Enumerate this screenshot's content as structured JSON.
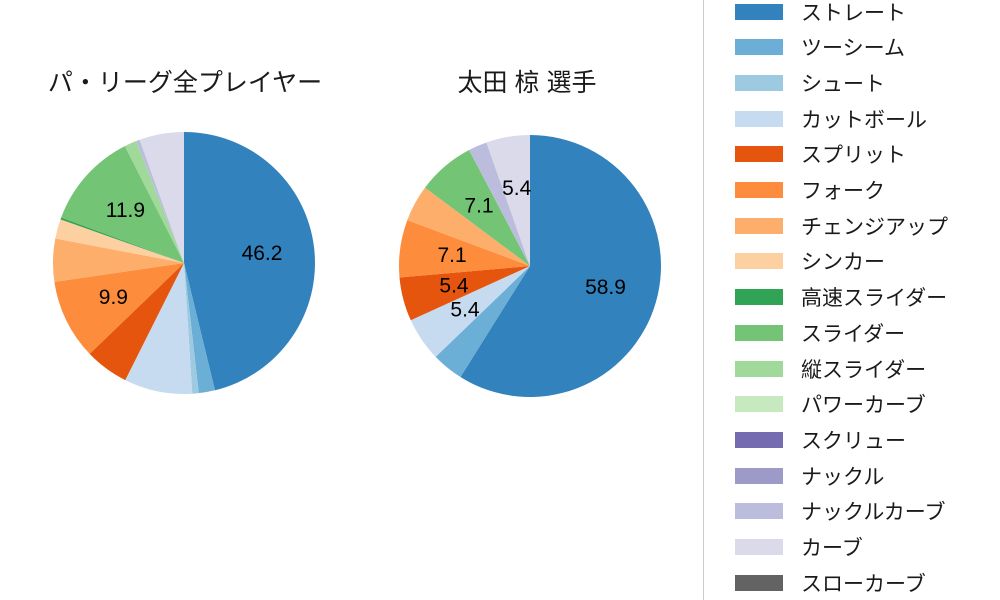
{
  "colors": {
    "background": "#ffffff",
    "text": "#1a1a1a",
    "label_text": "#000000",
    "legend_border": "#cccccc",
    "legend_background": "#ffffff"
  },
  "legend": {
    "items": [
      {
        "label": "ストレート",
        "color": "#3182bd"
      },
      {
        "label": "ツーシーム",
        "color": "#6baed6"
      },
      {
        "label": "シュート",
        "color": "#9ecae1"
      },
      {
        "label": "カットボール",
        "color": "#c6dbef"
      },
      {
        "label": "スプリット",
        "color": "#e6550d"
      },
      {
        "label": "フォーク",
        "color": "#fd8d3c"
      },
      {
        "label": "チェンジアップ",
        "color": "#fdae6b"
      },
      {
        "label": "シンカー",
        "color": "#fdd0a2"
      },
      {
        "label": "高速スライダー",
        "color": "#31a354"
      },
      {
        "label": "スライダー",
        "color": "#74c476"
      },
      {
        "label": "縦スライダー",
        "color": "#a1d99b"
      },
      {
        "label": "パワーカーブ",
        "color": "#c7e9c0"
      },
      {
        "label": "スクリュー",
        "color": "#756bb1"
      },
      {
        "label": "ナックル",
        "color": "#9e9ac8"
      },
      {
        "label": "ナックルカーブ",
        "color": "#bcbddc"
      },
      {
        "label": "カーブ",
        "color": "#dadaeb"
      },
      {
        "label": "スローカーブ",
        "color": "#636363"
      }
    ]
  },
  "chart_data": [
    {
      "type": "pie",
      "title": "パ・リーグ全プレイヤー",
      "start_angle_deg": 90,
      "direction": "clockwise",
      "categories": [
        "ストレート",
        "ツーシーム",
        "シュート",
        "カットボール",
        "スプリット",
        "フォーク",
        "チェンジアップ",
        "シンカー",
        "高速スライダー",
        "スライダー",
        "縦スライダー",
        "パワーカーブ",
        "スクリュー",
        "ナックル",
        "ナックルカーブ",
        "カーブ",
        "スローカーブ"
      ],
      "values": [
        46.2,
        2.0,
        0.8,
        8.4,
        5.4,
        9.9,
        5.3,
        2.4,
        0.25,
        11.9,
        1.5,
        0,
        0,
        0,
        0.45,
        5.5,
        0
      ],
      "shown_labels": [
        "46.2",
        "",
        "",
        "",
        "",
        "9.9",
        "",
        "",
        "",
        "11.9",
        "",
        "",
        "",
        "",
        "",
        "",
        ""
      ]
    },
    {
      "type": "pie",
      "title": "太田 椋  選手",
      "start_angle_deg": 90,
      "direction": "clockwise",
      "categories": [
        "ストレート",
        "ツーシーム",
        "シュート",
        "カットボール",
        "スプリット",
        "フォーク",
        "チェンジアップ",
        "シンカー",
        "高速スライダー",
        "スライダー",
        "縦スライダー",
        "パワーカーブ",
        "スクリュー",
        "ナックル",
        "ナックルカーブ",
        "カーブ",
        "スローカーブ"
      ],
      "values": [
        58.9,
        3.9,
        0,
        5.4,
        5.4,
        7.1,
        4.5,
        0,
        0,
        7.1,
        0,
        0,
        0,
        0,
        2.3,
        5.4,
        0
      ],
      "shown_labels": [
        "58.9",
        "",
        "",
        "5.4",
        "5.4",
        "7.1",
        "",
        "",
        "",
        "7.1",
        "",
        "",
        "",
        "",
        "",
        "5.4",
        ""
      ]
    }
  ]
}
